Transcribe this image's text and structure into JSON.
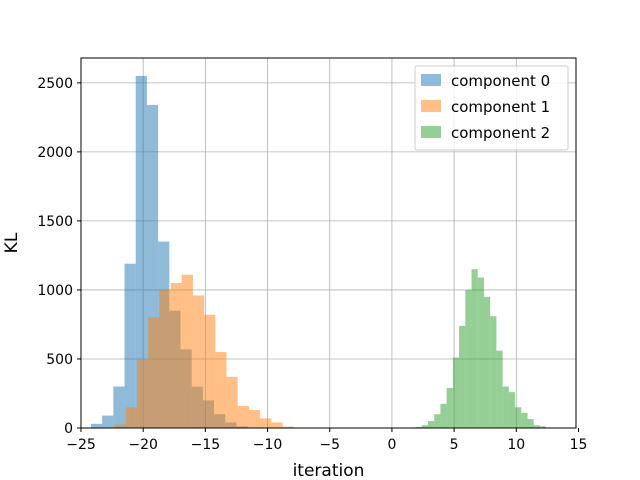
{
  "chart_data": {
    "type": "histogram",
    "title": "",
    "xlabel": "iteration",
    "ylabel": "KL",
    "xlim": [
      -25.0,
      14.8
    ],
    "ylim": [
      0,
      2680
    ],
    "xticks": [
      -25,
      -20,
      -15,
      -10,
      -5,
      0,
      5,
      10,
      15
    ],
    "yticks": [
      0,
      500,
      1000,
      1500,
      2000,
      2500
    ],
    "grid": true,
    "legend_position": "top-right",
    "series": [
      {
        "name": "component 0",
        "color": "#1f77b4",
        "alpha": 0.5,
        "bins": [
          {
            "x0": -24.2,
            "x1": -23.3,
            "count": 30
          },
          {
            "x0": -23.3,
            "x1": -22.4,
            "count": 90
          },
          {
            "x0": -22.4,
            "x1": -21.5,
            "count": 300
          },
          {
            "x0": -21.5,
            "x1": -20.6,
            "count": 1190
          },
          {
            "x0": -20.6,
            "x1": -19.7,
            "count": 2550
          },
          {
            "x0": -19.7,
            "x1": -18.8,
            "count": 2340
          },
          {
            "x0": -18.8,
            "x1": -17.9,
            "count": 1350
          },
          {
            "x0": -17.9,
            "x1": -17.0,
            "count": 850
          },
          {
            "x0": -17.0,
            "x1": -16.1,
            "count": 570
          },
          {
            "x0": -16.1,
            "x1": -15.2,
            "count": 300
          },
          {
            "x0": -15.2,
            "x1": -14.3,
            "count": 200
          },
          {
            "x0": -14.3,
            "x1": -13.4,
            "count": 100
          },
          {
            "x0": -13.4,
            "x1": -12.5,
            "count": 40
          },
          {
            "x0": -12.5,
            "x1": -11.6,
            "count": 12
          },
          {
            "x0": -11.6,
            "x1": -10.7,
            "count": 4
          }
        ]
      },
      {
        "name": "component 1",
        "color": "#ff7f0e",
        "alpha": 0.5,
        "bins": [
          {
            "x0": -22.3,
            "x1": -21.4,
            "count": 25
          },
          {
            "x0": -21.4,
            "x1": -20.5,
            "count": 150
          },
          {
            "x0": -20.5,
            "x1": -19.6,
            "count": 500
          },
          {
            "x0": -19.6,
            "x1": -18.7,
            "count": 800
          },
          {
            "x0": -18.7,
            "x1": -17.8,
            "count": 1000
          },
          {
            "x0": -17.8,
            "x1": -16.9,
            "count": 1050
          },
          {
            "x0": -16.9,
            "x1": -16.0,
            "count": 1110
          },
          {
            "x0": -16.0,
            "x1": -15.1,
            "count": 960
          },
          {
            "x0": -15.1,
            "x1": -14.2,
            "count": 820
          },
          {
            "x0": -14.2,
            "x1": -13.3,
            "count": 550
          },
          {
            "x0": -13.3,
            "x1": -12.4,
            "count": 370
          },
          {
            "x0": -12.4,
            "x1": -11.5,
            "count": 160
          },
          {
            "x0": -11.5,
            "x1": -10.6,
            "count": 130
          },
          {
            "x0": -10.6,
            "x1": -9.7,
            "count": 70
          },
          {
            "x0": -9.7,
            "x1": -8.8,
            "count": 40
          },
          {
            "x0": -8.8,
            "x1": -7.9,
            "count": 10
          }
        ]
      },
      {
        "name": "component 2",
        "color": "#2ca02c",
        "alpha": 0.5,
        "bins": [
          {
            "x0": 1.9,
            "x1": 2.4,
            "count": 8
          },
          {
            "x0": 2.4,
            "x1": 2.9,
            "count": 20
          },
          {
            "x0": 2.9,
            "x1": 3.4,
            "count": 50
          },
          {
            "x0": 3.4,
            "x1": 3.9,
            "count": 100
          },
          {
            "x0": 3.9,
            "x1": 4.4,
            "count": 175
          },
          {
            "x0": 4.4,
            "x1": 4.9,
            "count": 290
          },
          {
            "x0": 4.9,
            "x1": 5.4,
            "count": 510
          },
          {
            "x0": 5.4,
            "x1": 5.9,
            "count": 740
          },
          {
            "x0": 5.9,
            "x1": 6.4,
            "count": 1000
          },
          {
            "x0": 6.4,
            "x1": 6.9,
            "count": 1150
          },
          {
            "x0": 6.9,
            "x1": 7.4,
            "count": 1090
          },
          {
            "x0": 7.4,
            "x1": 7.9,
            "count": 950
          },
          {
            "x0": 7.9,
            "x1": 8.4,
            "count": 810
          },
          {
            "x0": 8.4,
            "x1": 8.9,
            "count": 560
          },
          {
            "x0": 8.9,
            "x1": 9.4,
            "count": 300
          },
          {
            "x0": 9.4,
            "x1": 9.9,
            "count": 260
          },
          {
            "x0": 9.9,
            "x1": 10.4,
            "count": 150
          },
          {
            "x0": 10.4,
            "x1": 10.9,
            "count": 110
          },
          {
            "x0": 10.9,
            "x1": 11.4,
            "count": 65
          },
          {
            "x0": 11.4,
            "x1": 11.9,
            "count": 20
          },
          {
            "x0": 11.9,
            "x1": 12.4,
            "count": 12
          }
        ]
      }
    ]
  }
}
